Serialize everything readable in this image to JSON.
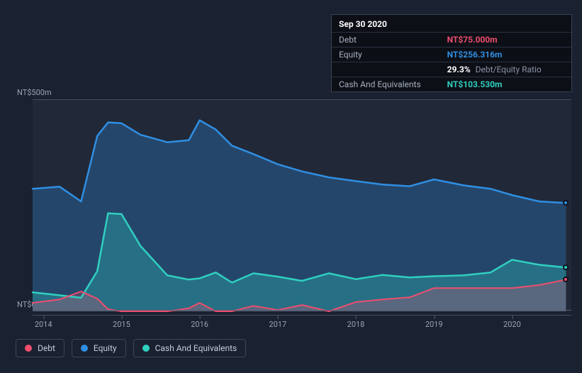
{
  "chart": {
    "type": "area",
    "background_color": "#1a2130",
    "plot_background": "#212837",
    "grid_color": "#454e61",
    "baseline_color": "#565f73",
    "ylim": [
      0,
      500
    ],
    "y_ticks": [
      {
        "value": 500,
        "label": "NT$500m"
      },
      {
        "value": 0,
        "label": "NT$0"
      }
    ],
    "x_ticks": [
      "2014",
      "2015",
      "2016",
      "2017",
      "2018",
      "2019",
      "2020"
    ],
    "x_tick_xnorm": [
      0.02,
      0.165,
      0.31,
      0.455,
      0.6,
      0.745,
      0.89
    ],
    "series": {
      "equity": {
        "label": "Equity",
        "color": "#2f8fe3",
        "fill": "rgba(47,143,227,0.30)",
        "line_width": 2.5,
        "data_xnorm": [
          0.0,
          0.05,
          0.09,
          0.12,
          0.14,
          0.165,
          0.2,
          0.25,
          0.29,
          0.31,
          0.34,
          0.37,
          0.41,
          0.455,
          0.5,
          0.55,
          0.6,
          0.65,
          0.7,
          0.745,
          0.8,
          0.85,
          0.89,
          0.94,
          0.99
        ],
        "data_y": [
          290,
          295,
          260,
          415,
          447,
          445,
          418,
          400,
          405,
          452,
          430,
          392,
          372,
          348,
          331,
          317,
          308,
          300,
          296,
          312,
          298,
          290,
          275,
          260,
          256.316
        ]
      },
      "cash": {
        "label": "Cash And Equivalents",
        "color": "#2fd0c0",
        "fill": "rgba(47,208,192,0.30)",
        "line_width": 2.5,
        "data_xnorm": [
          0.0,
          0.05,
          0.09,
          0.12,
          0.14,
          0.165,
          0.2,
          0.25,
          0.29,
          0.31,
          0.34,
          0.37,
          0.41,
          0.455,
          0.5,
          0.55,
          0.6,
          0.65,
          0.7,
          0.745,
          0.8,
          0.85,
          0.89,
          0.94,
          0.99
        ],
        "data_y": [
          45,
          38,
          32,
          95,
          232,
          230,
          155,
          85,
          75,
          78,
          92,
          68,
          90,
          82,
          72,
          90,
          76,
          86,
          80,
          83,
          85,
          92,
          122,
          110,
          103.53
        ]
      },
      "debt": {
        "label": "Debt",
        "color": "#ef4e6e",
        "fill": "rgba(239,78,110,0.25)",
        "line_width": 2,
        "data_xnorm": [
          0.0,
          0.05,
          0.09,
          0.12,
          0.14,
          0.165,
          0.2,
          0.25,
          0.29,
          0.31,
          0.34,
          0.37,
          0.41,
          0.455,
          0.5,
          0.55,
          0.6,
          0.65,
          0.7,
          0.745,
          0.8,
          0.85,
          0.89,
          0.94,
          0.99
        ],
        "data_y": [
          20,
          28,
          47,
          30,
          5,
          0,
          0,
          0,
          7,
          20,
          0,
          0,
          13,
          3,
          15,
          0,
          22,
          28,
          33,
          55,
          55,
          55,
          55,
          62,
          75
        ]
      }
    },
    "end_dots": [
      {
        "series": "equity",
        "color": "#2f8fe3"
      },
      {
        "series": "cash",
        "color": "#2fd0c0"
      },
      {
        "series": "debt",
        "color": "#ef4e6e"
      }
    ],
    "tooltip": {
      "date": "Sep 30 2020",
      "rows": [
        {
          "label": "Debt",
          "value": "NT$75.000m",
          "color": "#ef4e6e"
        },
        {
          "label": "Equity",
          "value": "NT$256.316m",
          "color": "#2f8fe3"
        },
        {
          "label": "",
          "value": "29.3%",
          "sub": "Debt/Equity Ratio",
          "color": "#ffffff"
        },
        {
          "label": "Cash And Equivalents",
          "value": "NT$103.530m",
          "color": "#2fd0c0"
        }
      ]
    },
    "legend": [
      {
        "key": "debt",
        "label": "Debt",
        "color": "#ef4e6e"
      },
      {
        "key": "equity",
        "label": "Equity",
        "color": "#2f8fe3"
      },
      {
        "key": "cash",
        "label": "Cash And Equivalents",
        "color": "#2fd0c0"
      }
    ],
    "label_fontsize": 11,
    "legend_fontsize": 12,
    "tooltip_fontsize": 12
  }
}
